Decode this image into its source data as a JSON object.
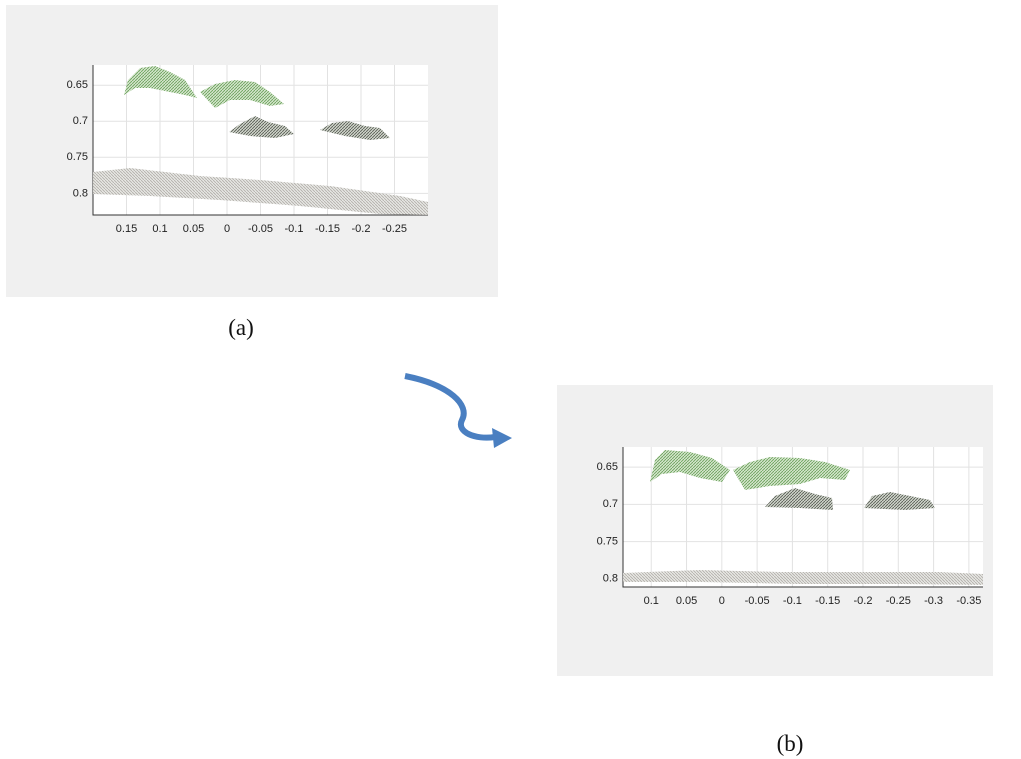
{
  "panels": [
    {
      "caption": "(a)",
      "xlim": [
        0.2,
        -0.3
      ],
      "ylim": [
        0.622,
        0.83
      ],
      "xticks": [
        0.15,
        0.1,
        0.05,
        0,
        -0.05,
        -0.1,
        -0.15,
        -0.2,
        -0.25
      ],
      "yticks": [
        0.65,
        0.7,
        0.75,
        0.8
      ]
    },
    {
      "caption": "(b)",
      "xlim": [
        0.14,
        -0.37
      ],
      "ylim": [
        0.623,
        0.811
      ],
      "xticks": [
        0.1,
        0.05,
        0,
        -0.05,
        -0.1,
        -0.15,
        -0.2,
        -0.25,
        -0.3,
        -0.35
      ],
      "yticks": [
        0.65,
        0.7,
        0.75,
        0.8
      ]
    }
  ]
}
